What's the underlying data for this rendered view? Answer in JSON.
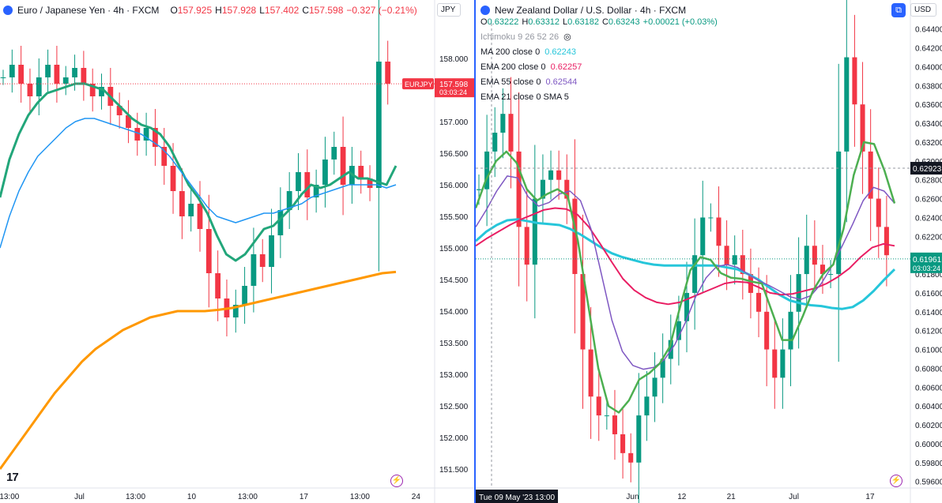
{
  "left": {
    "title": "Euro / Japanese Yen · 4h · FXCM",
    "ohlc": {
      "o_label": "O",
      "o": "157.925",
      "h_label": "H",
      "h": "157.928",
      "l_label": "L",
      "l": "157.402",
      "c_label": "C",
      "c": "157.598",
      "chg": "−0.327 (−0.21%)"
    },
    "currency": "JPY",
    "price_tag": {
      "symbol": "EURJPY",
      "price": "157.598",
      "countdown": "03:03:24"
    },
    "logo": "17",
    "colors": {
      "up": "#089981",
      "down": "#f23645",
      "ema_fast": "#22a67a",
      "ema_mid": "#2196f3",
      "ema_slow": "#ff9800"
    },
    "chart_data": {
      "type": "line",
      "title": "Euro / Japanese Yen · 4h · FXCM",
      "y_ticks": [
        "158.000",
        "157.500",
        "157.000",
        "156.500",
        "156.000",
        "155.500",
        "155.000",
        "154.500",
        "154.000",
        "153.500",
        "153.000",
        "152.500",
        "152.000",
        "151.500"
      ],
      "ylim": [
        151.2,
        158.6
      ],
      "x_ticks": [
        {
          "x": 0.5,
          "label": "13:00"
        },
        {
          "x": 8,
          "label": "Jul"
        },
        {
          "x": 14,
          "label": "13:00"
        },
        {
          "x": 20,
          "label": "10"
        },
        {
          "x": 26,
          "label": "13:00"
        },
        {
          "x": 32,
          "label": "17"
        },
        {
          "x": 38,
          "label": "13:00"
        },
        {
          "x": 44,
          "label": "24"
        }
      ],
      "xlim": [
        -0.5,
        46
      ],
      "price_close": [
        157.7,
        157.9,
        157.6,
        157.4,
        157.7,
        157.9,
        157.6,
        157.7,
        157.85,
        157.6,
        157.4,
        157.55,
        157.25,
        157.1,
        156.9,
        156.7,
        156.9,
        156.6,
        156.3,
        155.9,
        155.5,
        155.7,
        155.3,
        154.6,
        154.2,
        153.9,
        154.1,
        154.4,
        154.9,
        154.7,
        155.2,
        155.6,
        155.9,
        156.2,
        155.8,
        156.0,
        156.4,
        156.6,
        156.0,
        156.3,
        156.1,
        155.95,
        157.95,
        157.6
      ],
      "series": [
        {
          "name": "EMA fast",
          "values": [
            155.8,
            156.4,
            156.8,
            157.1,
            157.3,
            157.45,
            157.5,
            157.55,
            157.6,
            157.6,
            157.55,
            157.5,
            157.35,
            157.2,
            157.05,
            156.95,
            156.9,
            156.8,
            156.6,
            156.3,
            156.0,
            155.8,
            155.55,
            155.2,
            154.9,
            154.8,
            154.9,
            155.1,
            155.3,
            155.35,
            155.5,
            155.65,
            155.85,
            156.0,
            155.95,
            156.0,
            156.1,
            156.2,
            156.1,
            156.1,
            156.05,
            156.0,
            156.3
          ]
        },
        {
          "name": "EMA mid",
          "values": [
            155.0,
            155.5,
            155.9,
            156.2,
            156.45,
            156.6,
            156.75,
            156.9,
            157.0,
            157.05,
            157.05,
            157.0,
            156.95,
            156.9,
            156.85,
            156.8,
            156.7,
            156.6,
            156.45,
            156.25,
            156.05,
            155.85,
            155.65,
            155.5,
            155.45,
            155.4,
            155.45,
            155.5,
            155.55,
            155.55,
            155.6,
            155.65,
            155.7,
            155.8,
            155.85,
            155.9,
            155.95,
            156.0,
            156.0,
            156.0,
            156.0,
            155.95,
            156.0
          ]
        },
        {
          "name": "EMA slow",
          "values": [
            151.5,
            151.8,
            152.1,
            152.4,
            152.7,
            152.95,
            153.2,
            153.4,
            153.55,
            153.7,
            153.8,
            153.9,
            153.95,
            154.0,
            154.0,
            154.0,
            154.02,
            154.05,
            154.1,
            154.15,
            154.2,
            154.25,
            154.3,
            154.35,
            154.4,
            154.45,
            154.5,
            154.55,
            154.6,
            154.62
          ]
        }
      ]
    }
  },
  "right": {
    "title": "New Zealand Dollar / U.S. Dollar · 4h · FXCM",
    "ohlc": {
      "o_label": "O",
      "o": "0.63222",
      "h_label": "H",
      "h": "0.63312",
      "l_label": "L",
      "l": "0.63182",
      "c_label": "C",
      "c": "0.63243",
      "chg": "+0.00021 (+0.03%)"
    },
    "currency": "USD",
    "indicators": [
      {
        "label": "Ichimoku 9 26 52 26",
        "value": "",
        "color": "#9598a1",
        "dim": true
      },
      {
        "label": "MA 200 close 0",
        "value": "0.62243",
        "color": "#26c6da"
      },
      {
        "label": "EMA 200 close 0",
        "value": "0.62257",
        "color": "#e91e63"
      },
      {
        "label": "EMA 55 close 0",
        "value": "0.62544",
        "color": "#7e57c2"
      },
      {
        "label": "EMA 21 close 0 SMA 5",
        "value": "",
        "color": "#4caf50"
      }
    ],
    "price_tags": [
      {
        "price": "0.62923",
        "countdown": ""
      },
      {
        "price": "0.61961",
        "countdown": "03:03:24"
      }
    ],
    "crosshair_label": "Tue 09 May '23   13:00",
    "colors": {
      "ma200": "#26c6da",
      "ema200": "#e91e63",
      "ema55": "#7e57c2",
      "ema21": "#4caf50",
      "up": "#089981",
      "down": "#f23645"
    },
    "chart_data": {
      "type": "line",
      "title": "New Zealand Dollar / U.S. Dollar · 4h · FXCM",
      "y_ticks": [
        "0.64400",
        "0.64200",
        "0.64000",
        "0.63800",
        "0.63600",
        "0.63400",
        "0.63200",
        "0.63000",
        "0.62800",
        "0.62600",
        "0.62400",
        "0.62200",
        "0.62000",
        "0.61800",
        "0.61600",
        "0.61400",
        "0.61200",
        "0.61000",
        "0.60800",
        "0.60600",
        "0.60400",
        "0.60200",
        "0.60000",
        "0.59800",
        "0.59600"
      ],
      "ylim": [
        0.5953,
        0.6449
      ],
      "x_ticks": [
        {
          "x": 0,
          "label": "Tue 09 May '23   13:00"
        },
        {
          "x": 32,
          "label": "Jun"
        },
        {
          "x": 43,
          "label": "12"
        },
        {
          "x": 54,
          "label": "21"
        },
        {
          "x": 68,
          "label": "Jul"
        },
        {
          "x": 85,
          "label": "17"
        }
      ],
      "xlim": [
        -3,
        94
      ],
      "price_close": [
        0.627,
        0.631,
        0.633,
        0.635,
        0.631,
        0.623,
        0.619,
        0.626,
        0.628,
        0.629,
        0.628,
        0.626,
        0.618,
        0.61,
        0.605,
        0.603,
        0.603,
        0.601,
        0.599,
        0.598,
        0.603,
        0.605,
        0.607,
        0.609,
        0.611,
        0.613,
        0.616,
        0.62,
        0.624,
        0.624,
        0.621,
        0.619,
        0.62,
        0.618,
        0.616,
        0.614,
        0.61,
        0.607,
        0.61,
        0.614,
        0.618,
        0.621,
        0.619,
        0.618,
        0.618,
        0.631,
        0.641,
        0.636,
        0.631,
        0.626,
        0.623,
        0.62
      ],
      "series": [
        {
          "name": "MA 200",
          "values": [
            0.6215,
            0.6225,
            0.6232,
            0.6237,
            0.6238,
            0.6236,
            0.6234,
            0.6233,
            0.6232,
            0.6228,
            0.6222,
            0.6215,
            0.6208,
            0.6202,
            0.6198,
            0.6195,
            0.6192,
            0.619,
            0.6189,
            0.6189,
            0.6189,
            0.6189,
            0.6189,
            0.6189,
            0.6187,
            0.6185,
            0.618,
            0.6174,
            0.6166,
            0.6158,
            0.6152,
            0.6149,
            0.6147,
            0.6146,
            0.6144,
            0.6143,
            0.6145,
            0.6152,
            0.6162,
            0.6174,
            0.6185
          ]
        },
        {
          "name": "EMA 200",
          "values": [
            0.621,
            0.6218,
            0.6225,
            0.6232,
            0.6238,
            0.6243,
            0.6248,
            0.625,
            0.6249,
            0.6243,
            0.623,
            0.6212,
            0.6193,
            0.6175,
            0.6163,
            0.6155,
            0.615,
            0.6148,
            0.615,
            0.6155,
            0.616,
            0.6165,
            0.617,
            0.6172,
            0.6171,
            0.6166,
            0.616,
            0.6158,
            0.6159,
            0.6162,
            0.6165,
            0.617,
            0.6177,
            0.6186,
            0.6198,
            0.6208,
            0.6212,
            0.621
          ]
        },
        {
          "name": "EMA 55",
          "values": [
            0.623,
            0.6248,
            0.6268,
            0.6284,
            0.6282,
            0.6262,
            0.6252,
            0.6256,
            0.6265,
            0.6268,
            0.6258,
            0.6228,
            0.618,
            0.6131,
            0.6098,
            0.6083,
            0.6079,
            0.6081,
            0.6089,
            0.6105,
            0.6128,
            0.6156,
            0.6176,
            0.6188,
            0.619,
            0.6187,
            0.618,
            0.6173,
            0.6168,
            0.6162,
            0.6156,
            0.6153,
            0.6157,
            0.617,
            0.6188,
            0.621,
            0.6233,
            0.6258,
            0.6272,
            0.6268,
            0.6255
          ]
        },
        {
          "name": "EMA 21",
          "values": [
            0.625,
            0.628,
            0.63,
            0.631,
            0.6298,
            0.627,
            0.6258,
            0.6265,
            0.627,
            0.6263,
            0.6215,
            0.6148,
            0.608,
            0.604,
            0.6033,
            0.6046,
            0.6068,
            0.6075,
            0.6085,
            0.6103,
            0.6145,
            0.6184,
            0.6198,
            0.6195,
            0.6181,
            0.6176,
            0.6175,
            0.6172,
            0.617,
            0.614,
            0.611,
            0.611,
            0.6135,
            0.6162,
            0.618,
            0.619,
            0.6228,
            0.6285,
            0.632,
            0.6318,
            0.629,
            0.6255
          ]
        }
      ]
    }
  }
}
